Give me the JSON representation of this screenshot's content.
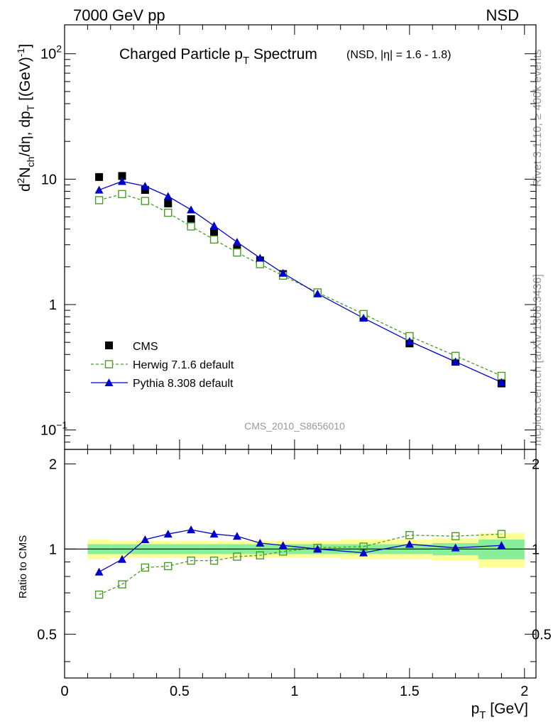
{
  "header": {
    "left": "7000 GeV pp",
    "right": "NSD"
  },
  "side": {
    "rivet": "Rivet 3.1.10, ≥ 400k events",
    "mcplots": "mcplots.cern.ch [arXiv:1306.3436]"
  },
  "watermark": "CMS_2010_S8656010",
  "chart_data": [
    {
      "type": "scatter",
      "panel": "main",
      "title": {
        "main": "Charged Particle p",
        "sub": "T",
        "rest": " Spectrum",
        "small": "(NSD, |η| = 1.6 - 1.8)"
      },
      "ylabel": {
        "a": "d",
        "sup1": "2",
        "b": "N",
        "sub1": "ch",
        "c": "/dη, dp",
        "sub2": "T",
        "d": " [(GeV)",
        "sup2": "-1",
        "e": "]"
      },
      "yscale": "log",
      "ylim": [
        0.07,
        170
      ],
      "xlim": [
        0,
        2.05
      ],
      "yticks": [
        {
          "value": 0.1,
          "base": "10",
          "exp": "−1"
        },
        {
          "value": 1,
          "base": "1",
          "exp": ""
        },
        {
          "value": 10,
          "base": "10",
          "exp": ""
        },
        {
          "value": 100,
          "base": "10",
          "exp": "2"
        }
      ],
      "legend_position": "bottom-left",
      "series": [
        {
          "name": "CMS",
          "style": "data",
          "color": "#000000",
          "x": [
            0.15,
            0.25,
            0.35,
            0.45,
            0.55,
            0.65,
            0.75,
            0.85,
            0.95,
            1.1,
            1.3,
            1.5,
            1.7,
            1.9
          ],
          "y": [
            10.4,
            10.6,
            8.2,
            6.4,
            4.8,
            3.8,
            2.8,
            2.25,
            1.75,
            1.24,
            0.8,
            0.49,
            0.35,
            0.235
          ]
        },
        {
          "name": "Herwig 7.1.6 default",
          "style": "open-square-dashed",
          "color": "#4a9a2a",
          "x": [
            0.15,
            0.25,
            0.35,
            0.45,
            0.55,
            0.65,
            0.75,
            0.85,
            0.95,
            1.1,
            1.3,
            1.5,
            1.7,
            1.9
          ],
          "y": [
            6.8,
            7.6,
            6.7,
            5.4,
            4.2,
            3.3,
            2.6,
            2.1,
            1.7,
            1.25,
            0.84,
            0.56,
            0.39,
            0.27
          ]
        },
        {
          "name": "Pythia 8.308 default",
          "style": "triangle-solid",
          "color": "#0000cc",
          "x": [
            0.15,
            0.25,
            0.35,
            0.45,
            0.55,
            0.65,
            0.75,
            0.85,
            0.95,
            1.1,
            1.3,
            1.5,
            1.7,
            1.9
          ],
          "y": [
            8.2,
            9.6,
            8.8,
            7.3,
            5.7,
            4.25,
            3.15,
            2.35,
            1.78,
            1.22,
            0.78,
            0.51,
            0.35,
            0.24
          ]
        }
      ]
    },
    {
      "type": "line",
      "panel": "ratio",
      "ylabel": "Ratio to CMS",
      "xlabel": {
        "main": "p",
        "sub": "T",
        "rest": " [GeV]"
      },
      "xlim": [
        0,
        2.05
      ],
      "ylim": [
        0.35,
        2.25
      ],
      "yscale": "log",
      "xticks": [
        0,
        0.5,
        1,
        1.5,
        2
      ],
      "xtick_labels": [
        "0",
        "0.5",
        "1",
        "1.5",
        "2"
      ],
      "yticks": [
        0.5,
        1,
        2
      ],
      "ytick_labels": [
        "0.5",
        "1",
        "2"
      ],
      "bands": {
        "edges": [
          0.1,
          0.2,
          0.3,
          0.4,
          0.5,
          0.6,
          0.7,
          0.8,
          0.9,
          1.0,
          1.2,
          1.4,
          1.6,
          1.8,
          2.0
        ],
        "stat_half": [
          0.04,
          0.04,
          0.04,
          0.04,
          0.04,
          0.04,
          0.04,
          0.04,
          0.04,
          0.04,
          0.04,
          0.04,
          0.05,
          0.08
        ],
        "total_half": [
          0.08,
          0.07,
          0.07,
          0.07,
          0.07,
          0.07,
          0.07,
          0.07,
          0.07,
          0.07,
          0.08,
          0.08,
          0.09,
          0.14
        ],
        "stat_color": "#88ee99",
        "total_color": "#ffff99"
      },
      "series": [
        {
          "name": "Herwig 7.1.6 default",
          "color": "#4a9a2a",
          "x": [
            0.15,
            0.25,
            0.35,
            0.45,
            0.55,
            0.65,
            0.75,
            0.85,
            0.95,
            1.1,
            1.3,
            1.5,
            1.7,
            1.9
          ],
          "y": [
            0.69,
            0.75,
            0.86,
            0.87,
            0.91,
            0.91,
            0.94,
            0.95,
            0.98,
            1.01,
            1.02,
            1.12,
            1.11,
            1.13
          ]
        },
        {
          "name": "Pythia 8.308 default",
          "color": "#0000cc",
          "x": [
            0.15,
            0.25,
            0.35,
            0.45,
            0.55,
            0.65,
            0.75,
            0.85,
            0.95,
            1.1,
            1.3,
            1.5,
            1.7,
            1.9
          ],
          "y": [
            0.83,
            0.92,
            1.08,
            1.13,
            1.17,
            1.13,
            1.11,
            1.05,
            1.03,
            1.0,
            0.97,
            1.04,
            1.01,
            1.03
          ]
        }
      ]
    }
  ]
}
